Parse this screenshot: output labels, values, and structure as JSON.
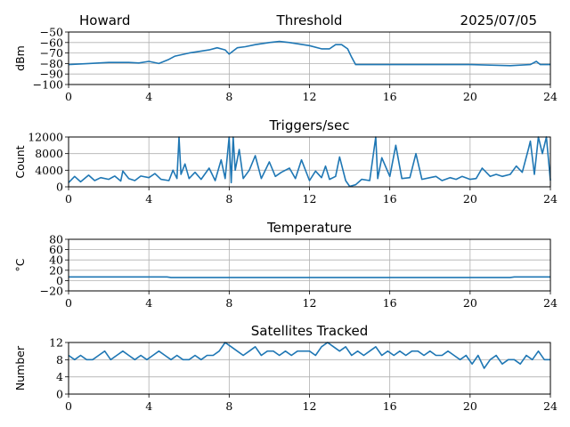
{
  "header": {
    "station": "Howard",
    "date": "2025/07/05"
  },
  "style": {
    "line_color": "#1f77b4",
    "grid": true
  },
  "chart_data": [
    {
      "id": "threshold",
      "type": "line",
      "title": "Threshold",
      "ylabel": "dBm",
      "xlim": [
        0,
        24
      ],
      "ylim": [
        -100,
        -50
      ],
      "xticks": [
        0,
        4,
        8,
        12,
        16,
        20,
        24
      ],
      "yticks": [
        -100,
        -90,
        -80,
        -70,
        -60,
        -50
      ],
      "ytick_labels": [
        "−100",
        "−90",
        "−80",
        "−70",
        "−60",
        "−50"
      ],
      "series": [
        {
          "x": [
            0,
            1,
            2,
            3,
            3.5,
            4,
            4.5,
            5,
            5.3,
            6,
            7,
            7.4,
            7.8,
            8,
            8.4,
            8.8,
            9.3,
            10,
            10.5,
            11,
            12,
            12.6,
            13,
            13.3,
            13.6,
            13.9,
            14.1,
            14.3,
            16,
            18,
            20,
            22,
            23,
            23.3,
            23.5,
            24
          ],
          "y": [
            -81,
            -80,
            -79,
            -79,
            -79.5,
            -78,
            -80,
            -76,
            -73,
            -70,
            -67,
            -65,
            -67,
            -71,
            -65,
            -64,
            -62,
            -60,
            -59,
            -60,
            -63,
            -66,
            -66,
            -62,
            -62,
            -66,
            -74,
            -81,
            -81,
            -81,
            -81,
            -82,
            -81,
            -78,
            -81,
            -81
          ]
        }
      ]
    },
    {
      "id": "triggers",
      "type": "line",
      "title": "Triggers/sec",
      "ylabel": "Count",
      "xlim": [
        0,
        24
      ],
      "ylim": [
        0,
        12000
      ],
      "xticks": [
        0,
        4,
        8,
        12,
        16,
        20,
        24
      ],
      "yticks": [
        0,
        4000,
        8000,
        12000
      ],
      "ytick_labels": [
        "0",
        "4000",
        "8000",
        "12000"
      ],
      "series": [
        {
          "x": [
            0,
            0.3,
            0.6,
            1,
            1.3,
            1.6,
            2,
            2.3,
            2.6,
            2.7,
            3,
            3.3,
            3.6,
            4,
            4.3,
            4.6,
            5,
            5.2,
            5.4,
            5.5,
            5.6,
            5.8,
            6,
            6.3,
            6.6,
            7,
            7.3,
            7.6,
            7.8,
            8,
            8.1,
            8.2,
            8.3,
            8.5,
            8.7,
            9,
            9.3,
            9.6,
            10,
            10.3,
            10.6,
            11,
            11.3,
            11.6,
            12,
            12.3,
            12.6,
            12.8,
            13,
            13.3,
            13.5,
            13.8,
            14,
            14.3,
            14.6,
            15,
            15.3,
            15.4,
            15.6,
            16,
            16.3,
            16.6,
            17,
            17.3,
            17.6,
            18,
            18.3,
            18.6,
            19,
            19.3,
            19.6,
            20,
            20.3,
            20.6,
            21,
            21.3,
            21.6,
            22,
            22.3,
            22.6,
            22.9,
            23,
            23.2,
            23.4,
            23.6,
            23.8,
            24
          ],
          "y": [
            1000,
            2500,
            1200,
            2800,
            1500,
            2200,
            1800,
            2600,
            1400,
            3800,
            2000,
            1500,
            2600,
            2200,
            3200,
            1800,
            1500,
            4000,
            2000,
            12000,
            3000,
            5500,
            2000,
            3500,
            1800,
            4500,
            1500,
            6500,
            2000,
            12000,
            1000,
            12000,
            4000,
            9000,
            2000,
            4000,
            7500,
            2000,
            6000,
            2500,
            3500,
            4500,
            2000,
            6500,
            1500,
            3800,
            2200,
            5000,
            1800,
            2500,
            7200,
            1500,
            100,
            500,
            1800,
            1500,
            12000,
            2000,
            7000,
            2500,
            10000,
            2000,
            2200,
            8000,
            1800,
            2200,
            2500,
            1500,
            2200,
            1800,
            2500,
            1800,
            2000,
            4500,
            2500,
            3000,
            2500,
            3000,
            5000,
            3500,
            9000,
            11000,
            3000,
            12000,
            8000,
            12000,
            1500
          ]
        }
      ]
    },
    {
      "id": "temperature",
      "type": "line",
      "title": "Temperature",
      "ylabel": "°C",
      "xlim": [
        0,
        24
      ],
      "ylim": [
        -20,
        80
      ],
      "xticks": [
        0,
        4,
        8,
        12,
        16,
        20,
        24
      ],
      "yticks": [
        -20,
        0,
        20,
        40,
        60,
        80
      ],
      "ytick_labels": [
        "−20",
        "0",
        "20",
        "40",
        "60",
        "80"
      ],
      "series": [
        {
          "x": [
            0,
            2,
            4,
            4.9,
            5.1,
            6,
            8,
            10,
            12,
            14,
            16,
            18,
            20,
            22,
            22.2,
            24
          ],
          "y": [
            7,
            7,
            7,
            7,
            6,
            6,
            6,
            6,
            6,
            6,
            6,
            6,
            6,
            6,
            7,
            7
          ]
        }
      ]
    },
    {
      "id": "satellites",
      "type": "line",
      "title": "Satellites Tracked",
      "ylabel": "Number",
      "xlim": [
        0,
        24
      ],
      "ylim": [
        0,
        12
      ],
      "xticks": [
        0,
        4,
        8,
        12,
        16,
        20,
        24
      ],
      "yticks": [
        0,
        4,
        8,
        12
      ],
      "ytick_labels": [
        "0",
        "4",
        "8",
        "12"
      ],
      "series": [
        {
          "x": [
            0,
            0.3,
            0.6,
            0.9,
            1.2,
            1.5,
            1.8,
            2.1,
            2.4,
            2.7,
            3,
            3.3,
            3.6,
            3.9,
            4.2,
            4.5,
            4.8,
            5.1,
            5.4,
            5.7,
            6,
            6.3,
            6.6,
            6.9,
            7.2,
            7.5,
            7.8,
            8.1,
            8.4,
            8.7,
            9,
            9.3,
            9.6,
            9.9,
            10.2,
            10.5,
            10.8,
            11.1,
            11.4,
            11.7,
            12,
            12.3,
            12.6,
            12.9,
            13.2,
            13.5,
            13.8,
            14.1,
            14.4,
            14.7,
            15,
            15.3,
            15.6,
            15.9,
            16.2,
            16.5,
            16.8,
            17.1,
            17.4,
            17.7,
            18,
            18.3,
            18.6,
            18.9,
            19.2,
            19.5,
            19.8,
            20.1,
            20.4,
            20.7,
            21,
            21.3,
            21.6,
            21.9,
            22.2,
            22.5,
            22.8,
            23.1,
            23.4,
            23.7,
            24
          ],
          "y": [
            9,
            8,
            9,
            8,
            8,
            9,
            10,
            8,
            9,
            10,
            9,
            8,
            9,
            8,
            9,
            10,
            9,
            8,
            9,
            8,
            8,
            9,
            8,
            9,
            9,
            10,
            12,
            11,
            10,
            9,
            10,
            11,
            9,
            10,
            10,
            9,
            10,
            9,
            10,
            10,
            10,
            9,
            11,
            12,
            11,
            10,
            11,
            9,
            10,
            9,
            10,
            11,
            9,
            10,
            9,
            10,
            9,
            10,
            10,
            9,
            10,
            9,
            9,
            10,
            9,
            8,
            9,
            7,
            9,
            6,
            8,
            9,
            7,
            8,
            8,
            7,
            9,
            8,
            10,
            8,
            8
          ]
        }
      ]
    }
  ]
}
